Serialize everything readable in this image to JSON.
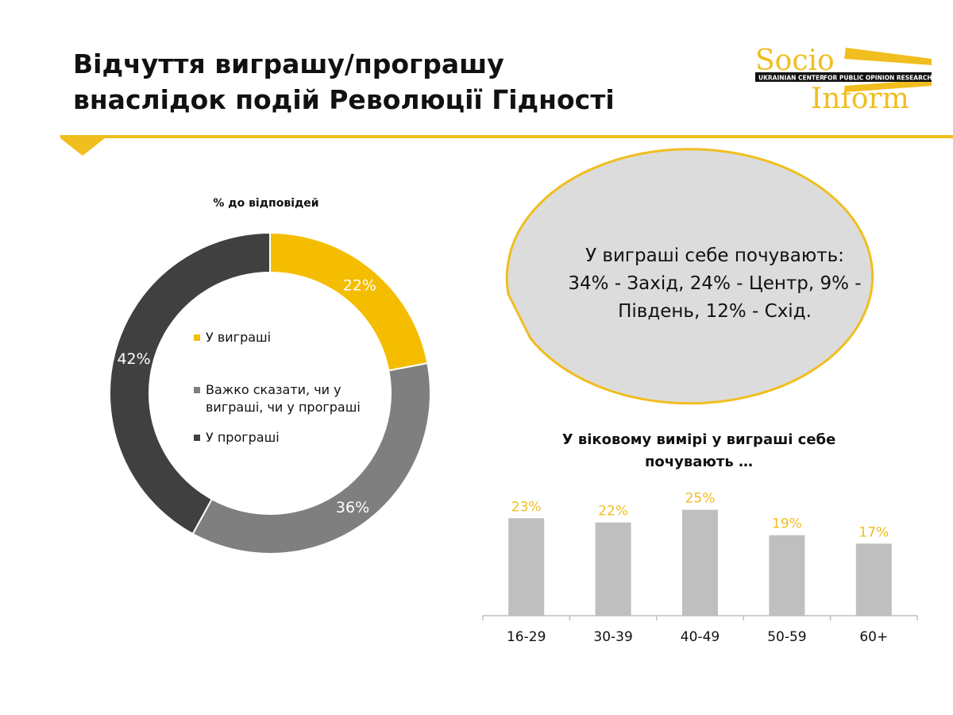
{
  "slide": {
    "title_line1": "Відчуття виграшу/програшу",
    "title_line2": "внаслідок подій Революції Гідності",
    "accent_color": "#f0be1e"
  },
  "logo": {
    "word_top": "Socio",
    "word_bottom": "Inform",
    "band_left": "UKRAINIAN CENTER",
    "band_right": "FOR PUBLIC OPINION RESEARCH"
  },
  "callout": {
    "line1": "У виграші себе почувають:",
    "line2": "34% - Захід, 24% - Центр, 9% -",
    "line3": "Південь, 12% - Схід."
  },
  "chart_data": [
    {
      "type": "pie",
      "title": "% до відповідей",
      "donut": true,
      "slices": [
        {
          "label": "У виграші",
          "value": 22,
          "value_label": "22%",
          "color": "#f5bd00"
        },
        {
          "label": "Важко сказати, чи у виграші, чи у програші",
          "value": 36,
          "value_label": "36%",
          "color": "#7f7f7f"
        },
        {
          "label": "У програші",
          "value": 42,
          "value_label": "42%",
          "color": "#404040"
        }
      ],
      "legend_position": "center"
    },
    {
      "type": "bar",
      "title": "У віковому вимірі у виграші себе почувають …",
      "categories": [
        "16-29",
        "30-39",
        "40-49",
        "50-59",
        "60+"
      ],
      "values": [
        23,
        22,
        25,
        19,
        17
      ],
      "value_labels": [
        "23%",
        "22%",
        "25%",
        "19%",
        "17%"
      ],
      "bar_color": "#bfbfbf",
      "label_color": "#f0be1e",
      "ylim": [
        0,
        30
      ],
      "grid": false
    }
  ]
}
